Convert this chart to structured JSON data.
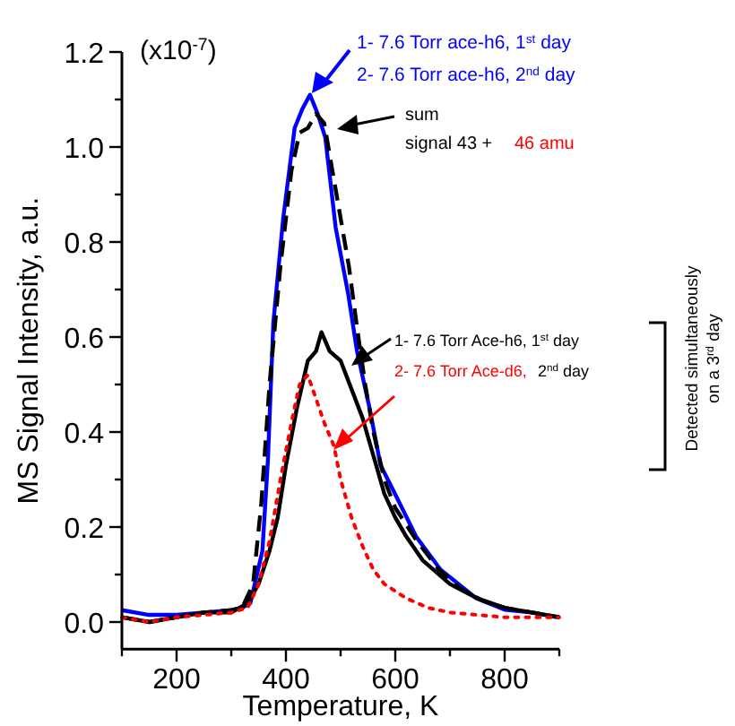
{
  "chart_data": {
    "type": "line",
    "xlabel": "Temperature, K",
    "ylabel": "MS Signal Intensity, a.u.",
    "xlim": [
      100,
      900
    ],
    "xticks": [
      {
        "value": 100,
        "label": null
      },
      200,
      {
        "value": 300,
        "label": null
      },
      400,
      {
        "value": 500,
        "label": null
      },
      600,
      {
        "value": 700,
        "label": null
      },
      800,
      {
        "value": 900,
        "label": null
      }
    ],
    "ylim": [
      -0.057,
      1.2
    ],
    "yticks": [
      "0.0",
      {
        "value": 0.1,
        "label": null
      },
      0.2,
      {
        "value": 0.3,
        "label": null
      },
      0.4,
      {
        "value": 0.5,
        "label": null
      },
      0.6,
      {
        "value": 0.7,
        "label": null
      },
      0.8,
      {
        "value": 0.9,
        "label": null
      },
      "1.0",
      {
        "value": 1.1,
        "label": null
      },
      1.2
    ],
    "grid": false,
    "series": [
      {
        "color": "#0000ff",
        "line_style": "solid",
        "x": [
          100,
          150,
          200,
          250,
          300,
          320,
          335,
          357,
          367,
          377,
          395,
          416,
          430,
          444,
          458,
          472,
          491,
          514,
          530,
          553,
          573,
          595,
          638,
          683,
          748,
          800,
          850,
          895
        ],
        "values": [
          0.025,
          0.015,
          0.015,
          0.02,
          0.025,
          0.03,
          0.04,
          0.15,
          0.34,
          0.63,
          0.85,
          1.04,
          1.08,
          1.11,
          1.07,
          1.02,
          0.83,
          0.69,
          0.57,
          0.45,
          0.33,
          0.28,
          0.18,
          0.11,
          0.05,
          0.026,
          0.02,
          0.01
        ]
      },
      {
        "color": "#000000",
        "line_style": "dashed",
        "x": [
          100,
          150,
          200,
          250,
          300,
          320,
          340,
          355,
          370,
          390,
          410,
          425,
          440,
          455,
          470,
          485,
          500,
          515,
          530,
          545,
          560,
          580,
          600,
          640,
          680,
          720,
          760,
          800,
          850,
          900
        ],
        "values": [
          0.01,
          0.0,
          0.01,
          0.02,
          0.025,
          0.03,
          0.08,
          0.25,
          0.5,
          0.75,
          0.95,
          1.03,
          1.04,
          1.07,
          1.05,
          0.95,
          0.85,
          0.75,
          0.62,
          0.5,
          0.4,
          0.3,
          0.24,
          0.17,
          0.11,
          0.07,
          0.045,
          0.03,
          0.02,
          0.01
        ]
      },
      {
        "color": "#000000",
        "line_style": "solid",
        "x": [
          100,
          150,
          200,
          250,
          300,
          330,
          350,
          370,
          385,
          400,
          420,
          440,
          455,
          465,
          480,
          500,
          520,
          540,
          560,
          580,
          600,
          620,
          650,
          700,
          750,
          800,
          850,
          900
        ],
        "values": [
          0.01,
          0.0,
          0.01,
          0.02,
          0.02,
          0.04,
          0.08,
          0.15,
          0.22,
          0.33,
          0.45,
          0.55,
          0.57,
          0.61,
          0.57,
          0.55,
          0.49,
          0.43,
          0.35,
          0.27,
          0.22,
          0.18,
          0.13,
          0.08,
          0.05,
          0.03,
          0.02,
          0.01
        ]
      },
      {
        "color": "#ff0000",
        "line_style": "dotted",
        "x": [
          100,
          150,
          200,
          250,
          300,
          330,
          350,
          370,
          390,
          410,
          425,
          440,
          455,
          470,
          488,
          500,
          520,
          540,
          560,
          580,
          620,
          660,
          700,
          800,
          900
        ],
        "values": [
          0.01,
          0.0,
          0.01,
          0.015,
          0.02,
          0.03,
          0.08,
          0.17,
          0.3,
          0.42,
          0.5,
          0.52,
          0.47,
          0.42,
          0.37,
          0.3,
          0.22,
          0.16,
          0.11,
          0.08,
          0.05,
          0.03,
          0.02,
          0.01,
          0.01
        ]
      }
    ],
    "annotations": [
      "(x10$^{-7}$)",
      "1- 7.6 Torr ace-h6, 1$^{st}$ day",
      "2- 7.6 Torr ace-h6, 2$^{nd}$ day",
      "sum",
      "signal 43 +",
      "46 amu",
      "1- 7.6 Torr Ace-h6, 1$^{st}$ day",
      "2- 7.6 Torr Ace-d6,",
      "2$^{nd}$ day",
      "Detected simultaneously",
      "on a 3$^{rd}$ day"
    ]
  }
}
